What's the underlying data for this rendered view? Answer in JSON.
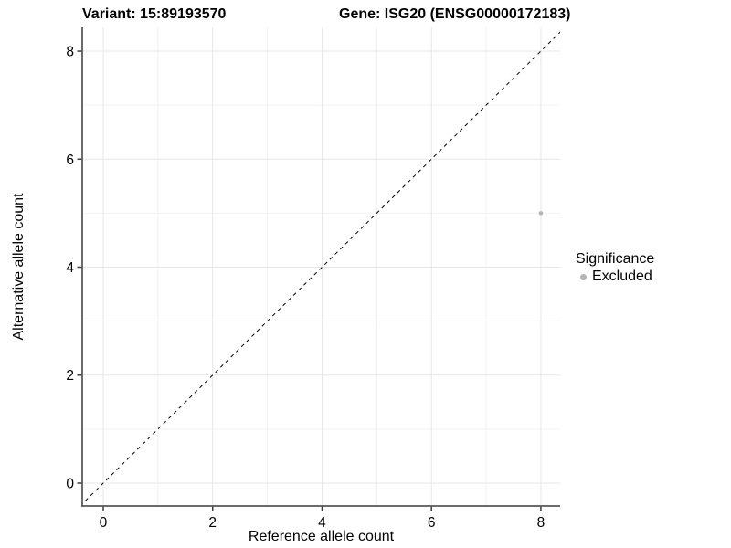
{
  "chart_data": {
    "type": "scatter",
    "title_left": "Variant: 15:89193570",
    "title_right": "Gene: ISG20 (ENSG00000172183)",
    "xlabel": "Reference allele count",
    "ylabel": "Alternative allele count",
    "xlim": [
      -0.384,
      8.352
    ],
    "ylim": [
      -0.423,
      8.44
    ],
    "xticks": [
      0,
      2,
      4,
      6,
      8
    ],
    "yticks": [
      0,
      2,
      4,
      6,
      8
    ],
    "minor_xticks": [
      1,
      3,
      5,
      7
    ],
    "minor_yticks": [
      1,
      3,
      5,
      7
    ],
    "grid": "major+minor",
    "identity_line": {
      "type": "dashed",
      "equation": "y = x",
      "from": [
        -0.423,
        -0.423
      ],
      "to": [
        8.6,
        8.6
      ]
    },
    "series": [
      {
        "name": "Excluded",
        "points": [
          {
            "x": 8,
            "y": 5
          }
        ]
      }
    ],
    "legend": {
      "title": "Significance",
      "position": "right",
      "items": [
        {
          "label": "Excluded",
          "color": "#b5b5b5"
        }
      ]
    },
    "colors": {
      "point": "#b5b5b5",
      "grid_major": "#e7e7e7",
      "grid_minor": "#f2f2f2",
      "axis_line": "#3c3c3c",
      "dashed_line": "#000000",
      "text": "#000000",
      "background": "#ffffff"
    }
  }
}
